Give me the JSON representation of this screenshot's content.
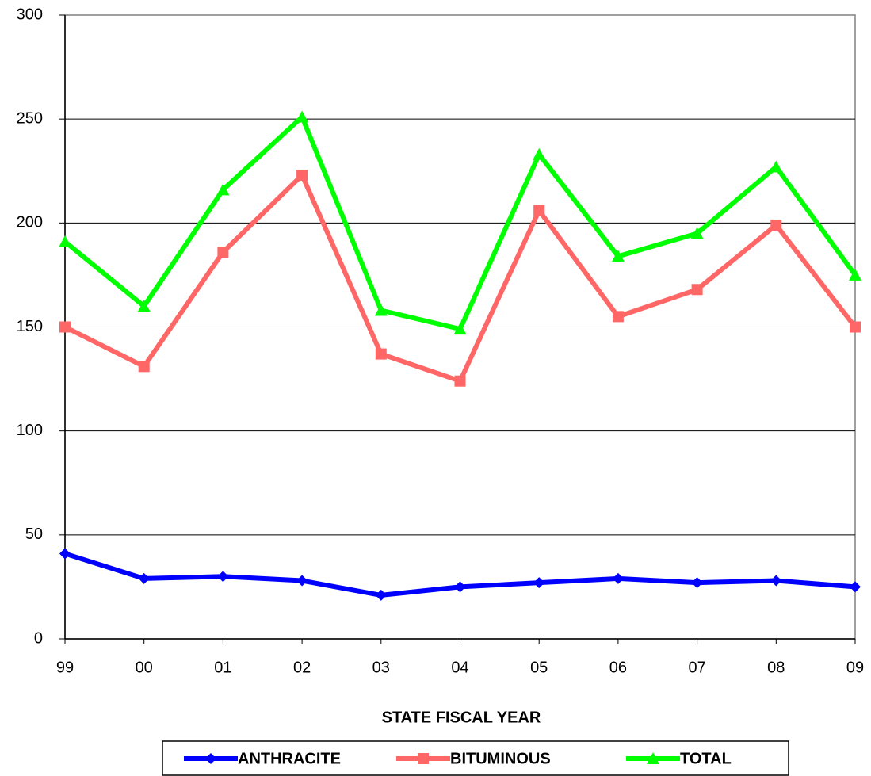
{
  "chart_data": {
    "type": "line",
    "x_label": "STATE FISCAL YEAR",
    "categories": [
      "99",
      "00",
      "01",
      "02",
      "03",
      "04",
      "05",
      "06",
      "07",
      "08",
      "09"
    ],
    "series": [
      {
        "name": "ANTHRACITE",
        "color": "#0000ff",
        "marker": "diamond",
        "values": [
          41,
          29,
          30,
          28,
          21,
          25,
          27,
          29,
          27,
          28,
          25
        ]
      },
      {
        "name": "BITUMINOUS",
        "color": "#ff6666",
        "marker": "square",
        "values": [
          150,
          131,
          186,
          223,
          137,
          124,
          206,
          155,
          168,
          199,
          150
        ]
      },
      {
        "name": "TOTAL",
        "color": "#00ff00",
        "marker": "triangle",
        "values": [
          191,
          160,
          216,
          251,
          158,
          149,
          233,
          184,
          195,
          227,
          175
        ]
      }
    ],
    "ylim": [
      0,
      300
    ],
    "yticks": [
      0,
      50,
      100,
      150,
      200,
      250,
      300
    ],
    "grid": true,
    "legend": "bottom"
  }
}
